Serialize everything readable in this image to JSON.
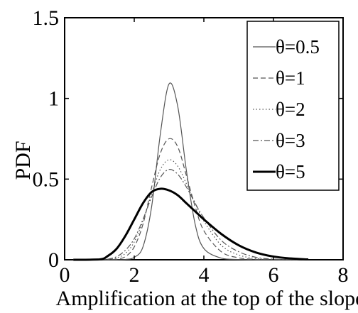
{
  "chart_data": {
    "type": "line",
    "xlabel": "Amplification at the top of the slope",
    "ylabel": "PDF",
    "xlim": [
      0,
      8
    ],
    "ylim": [
      0,
      1.5
    ],
    "xticks": [
      0,
      2,
      4,
      6,
      8
    ],
    "yticks": [
      0,
      0.5,
      1,
      1.5
    ],
    "ytick_labels": [
      "0",
      "0.5",
      "1",
      "1.5"
    ],
    "grid": false,
    "legend_position": "top-right",
    "x": [
      0.25,
      1,
      1.25,
      1.5,
      1.75,
      2,
      2.25,
      2.5,
      2.75,
      3,
      3.25,
      3.5,
      3.75,
      4,
      4.5,
      5,
      5.5,
      6,
      6.5,
      7
    ],
    "series": [
      {
        "name": "θ=0.5",
        "style": "solid-thin",
        "values": [
          0,
          0,
          0,
          0,
          0.002,
          0.015,
          0.08,
          0.33,
          0.78,
          1.09,
          0.95,
          0.55,
          0.22,
          0.07,
          0.01,
          0.002,
          0,
          0,
          0,
          0
        ]
      },
      {
        "name": "θ=1",
        "style": "dashed",
        "values": [
          0,
          0,
          0,
          0.004,
          0.02,
          0.08,
          0.22,
          0.45,
          0.66,
          0.75,
          0.7,
          0.52,
          0.33,
          0.18,
          0.05,
          0.012,
          0.003,
          0,
          0,
          0
        ]
      },
      {
        "name": "θ=2",
        "style": "dotted",
        "values": [
          0,
          0,
          0.002,
          0.012,
          0.04,
          0.11,
          0.24,
          0.41,
          0.56,
          0.62,
          0.58,
          0.47,
          0.35,
          0.24,
          0.09,
          0.03,
          0.008,
          0.002,
          0,
          0
        ]
      },
      {
        "name": "θ=3",
        "style": "dash-dot",
        "values": [
          0,
          0,
          0.004,
          0.02,
          0.06,
          0.13,
          0.25,
          0.39,
          0.51,
          0.56,
          0.53,
          0.45,
          0.35,
          0.26,
          0.12,
          0.05,
          0.015,
          0.004,
          0.001,
          0
        ]
      },
      {
        "name": "θ=5",
        "style": "solid-thick",
        "values": [
          0,
          0.002,
          0.025,
          0.07,
          0.15,
          0.25,
          0.35,
          0.42,
          0.44,
          0.43,
          0.4,
          0.35,
          0.3,
          0.25,
          0.16,
          0.09,
          0.045,
          0.02,
          0.008,
          0.002
        ]
      }
    ],
    "colors": {
      "axis": "#000000",
      "series_thin": "#555555",
      "series_thick": "#000000"
    }
  }
}
